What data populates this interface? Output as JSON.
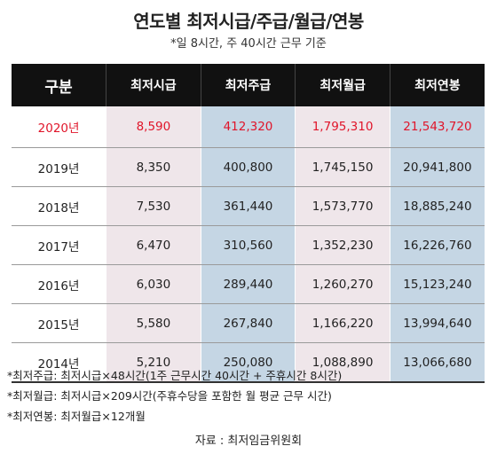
{
  "title": "연도별 최저시급/주급/월급/연봉",
  "subtitle": "*일 8시간, 주 40시간 근무 기준",
  "table": {
    "headers": [
      "구분",
      "최저시급",
      "최저주급",
      "최저월급",
      "최저연봉"
    ],
    "rows": [
      [
        "2020년",
        "8,590",
        "412,320",
        "1,795,310",
        "21,543,720"
      ],
      [
        "2019년",
        "8,350",
        "400,800",
        "1,745,150",
        "20,941,800"
      ],
      [
        "2018년",
        "7,530",
        "361,440",
        "1,573,770",
        "18,885,240"
      ],
      [
        "2017년",
        "6,470",
        "310,560",
        "1,352,230",
        "16,226,760"
      ],
      [
        "2016년",
        "6,030",
        "289,440",
        "1,260,270",
        "15,123,240"
      ],
      [
        "2015년",
        "5,580",
        "267,840",
        "1,166,220",
        "13,994,640"
      ],
      [
        "2014년",
        "5,210",
        "250,080",
        "1,088,890",
        "13,066,680"
      ]
    ],
    "highlight_color": "#e0152a"
  },
  "notes": [
    "*최저주급: 최저시급×48시간(1주 근무시간 40시간 + 주휴시간 8시간)",
    "*최저월급: 최저시급×209시간(주휴수당을 포함한 월 평균 근무 시간)",
    "*최저연봉: 최저월급×12개월"
  ],
  "source": "자료 : 최저임금위원회"
}
